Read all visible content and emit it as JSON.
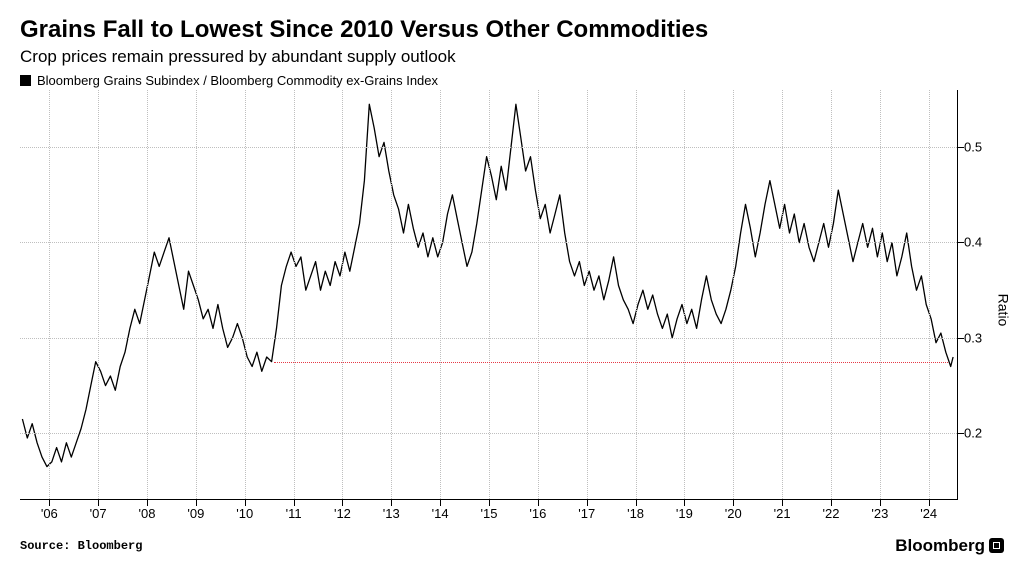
{
  "title": "Grains Fall to Lowest Since 2010 Versus Other Commodities",
  "subtitle": "Crop prices remain pressured by abundant supply outlook",
  "legend_label": "Bloomberg Grains Subindex / Bloomberg Commodity ex-Grains Index",
  "source": "Source: Bloomberg",
  "brand": "Bloomberg",
  "chart": {
    "type": "line",
    "yaxis_title": "Ratio",
    "ylim": [
      0.13,
      0.56
    ],
    "yticks": [
      0.2,
      0.3,
      0.4,
      0.5
    ],
    "xlim": [
      2005.4,
      2024.6
    ],
    "xticks": [
      2006,
      2007,
      2008,
      2009,
      2010,
      2011,
      2012,
      2013,
      2014,
      2015,
      2016,
      2017,
      2018,
      2019,
      2020,
      2021,
      2022,
      2023,
      2024
    ],
    "xtick_labels": [
      "'06",
      "'07",
      "'08",
      "'09",
      "'10",
      "'11",
      "'12",
      "'13",
      "'14",
      "'15",
      "'16",
      "'17",
      "'18",
      "'19",
      "'20",
      "'21",
      "'22",
      "'23",
      "'24"
    ],
    "line_color": "#000000",
    "line_width": 1.3,
    "grid_color": "#bfbfbf",
    "background_color": "#ffffff",
    "reference_line": {
      "y": 0.275,
      "x0": 2010.6,
      "x1": 2024.4,
      "color": "#e63946"
    },
    "series": [
      [
        2005.45,
        0.215
      ],
      [
        2005.55,
        0.195
      ],
      [
        2005.65,
        0.21
      ],
      [
        2005.75,
        0.19
      ],
      [
        2005.85,
        0.175
      ],
      [
        2005.95,
        0.165
      ],
      [
        2006.05,
        0.17
      ],
      [
        2006.15,
        0.185
      ],
      [
        2006.25,
        0.17
      ],
      [
        2006.35,
        0.19
      ],
      [
        2006.45,
        0.175
      ],
      [
        2006.55,
        0.19
      ],
      [
        2006.65,
        0.205
      ],
      [
        2006.75,
        0.225
      ],
      [
        2006.85,
        0.25
      ],
      [
        2006.95,
        0.275
      ],
      [
        2007.05,
        0.265
      ],
      [
        2007.15,
        0.25
      ],
      [
        2007.25,
        0.26
      ],
      [
        2007.35,
        0.245
      ],
      [
        2007.45,
        0.27
      ],
      [
        2007.55,
        0.285
      ],
      [
        2007.65,
        0.31
      ],
      [
        2007.75,
        0.33
      ],
      [
        2007.85,
        0.315
      ],
      [
        2007.95,
        0.34
      ],
      [
        2008.05,
        0.365
      ],
      [
        2008.15,
        0.39
      ],
      [
        2008.25,
        0.375
      ],
      [
        2008.35,
        0.39
      ],
      [
        2008.45,
        0.405
      ],
      [
        2008.55,
        0.38
      ],
      [
        2008.65,
        0.355
      ],
      [
        2008.75,
        0.33
      ],
      [
        2008.85,
        0.37
      ],
      [
        2008.95,
        0.355
      ],
      [
        2009.05,
        0.34
      ],
      [
        2009.15,
        0.32
      ],
      [
        2009.25,
        0.33
      ],
      [
        2009.35,
        0.31
      ],
      [
        2009.45,
        0.335
      ],
      [
        2009.55,
        0.31
      ],
      [
        2009.65,
        0.29
      ],
      [
        2009.75,
        0.3
      ],
      [
        2009.85,
        0.315
      ],
      [
        2009.95,
        0.3
      ],
      [
        2010.05,
        0.28
      ],
      [
        2010.15,
        0.27
      ],
      [
        2010.25,
        0.285
      ],
      [
        2010.35,
        0.265
      ],
      [
        2010.45,
        0.28
      ],
      [
        2010.55,
        0.275
      ],
      [
        2010.65,
        0.31
      ],
      [
        2010.75,
        0.355
      ],
      [
        2010.85,
        0.375
      ],
      [
        2010.95,
        0.39
      ],
      [
        2011.05,
        0.375
      ],
      [
        2011.15,
        0.385
      ],
      [
        2011.25,
        0.35
      ],
      [
        2011.35,
        0.365
      ],
      [
        2011.45,
        0.38
      ],
      [
        2011.55,
        0.35
      ],
      [
        2011.65,
        0.37
      ],
      [
        2011.75,
        0.355
      ],
      [
        2011.85,
        0.38
      ],
      [
        2011.95,
        0.365
      ],
      [
        2012.05,
        0.39
      ],
      [
        2012.15,
        0.37
      ],
      [
        2012.25,
        0.395
      ],
      [
        2012.35,
        0.42
      ],
      [
        2012.45,
        0.465
      ],
      [
        2012.55,
        0.545
      ],
      [
        2012.65,
        0.52
      ],
      [
        2012.75,
        0.49
      ],
      [
        2012.85,
        0.505
      ],
      [
        2012.95,
        0.475
      ],
      [
        2013.05,
        0.45
      ],
      [
        2013.15,
        0.435
      ],
      [
        2013.25,
        0.41
      ],
      [
        2013.35,
        0.44
      ],
      [
        2013.45,
        0.415
      ],
      [
        2013.55,
        0.395
      ],
      [
        2013.65,
        0.41
      ],
      [
        2013.75,
        0.385
      ],
      [
        2013.85,
        0.405
      ],
      [
        2013.95,
        0.385
      ],
      [
        2014.05,
        0.4
      ],
      [
        2014.15,
        0.43
      ],
      [
        2014.25,
        0.45
      ],
      [
        2014.35,
        0.425
      ],
      [
        2014.45,
        0.4
      ],
      [
        2014.55,
        0.375
      ],
      [
        2014.65,
        0.39
      ],
      [
        2014.75,
        0.42
      ],
      [
        2014.85,
        0.455
      ],
      [
        2014.95,
        0.49
      ],
      [
        2015.05,
        0.47
      ],
      [
        2015.15,
        0.445
      ],
      [
        2015.25,
        0.48
      ],
      [
        2015.35,
        0.455
      ],
      [
        2015.45,
        0.5
      ],
      [
        2015.55,
        0.545
      ],
      [
        2015.65,
        0.51
      ],
      [
        2015.75,
        0.475
      ],
      [
        2015.85,
        0.49
      ],
      [
        2015.95,
        0.455
      ],
      [
        2016.05,
        0.425
      ],
      [
        2016.15,
        0.44
      ],
      [
        2016.25,
        0.41
      ],
      [
        2016.35,
        0.43
      ],
      [
        2016.45,
        0.45
      ],
      [
        2016.55,
        0.41
      ],
      [
        2016.65,
        0.38
      ],
      [
        2016.75,
        0.365
      ],
      [
        2016.85,
        0.38
      ],
      [
        2016.95,
        0.355
      ],
      [
        2017.05,
        0.37
      ],
      [
        2017.15,
        0.35
      ],
      [
        2017.25,
        0.365
      ],
      [
        2017.35,
        0.34
      ],
      [
        2017.45,
        0.36
      ],
      [
        2017.55,
        0.385
      ],
      [
        2017.65,
        0.355
      ],
      [
        2017.75,
        0.34
      ],
      [
        2017.85,
        0.33
      ],
      [
        2017.95,
        0.315
      ],
      [
        2018.05,
        0.335
      ],
      [
        2018.15,
        0.35
      ],
      [
        2018.25,
        0.33
      ],
      [
        2018.35,
        0.345
      ],
      [
        2018.45,
        0.325
      ],
      [
        2018.55,
        0.31
      ],
      [
        2018.65,
        0.325
      ],
      [
        2018.75,
        0.3
      ],
      [
        2018.85,
        0.32
      ],
      [
        2018.95,
        0.335
      ],
      [
        2019.05,
        0.315
      ],
      [
        2019.15,
        0.33
      ],
      [
        2019.25,
        0.31
      ],
      [
        2019.35,
        0.34
      ],
      [
        2019.45,
        0.365
      ],
      [
        2019.55,
        0.34
      ],
      [
        2019.65,
        0.325
      ],
      [
        2019.75,
        0.315
      ],
      [
        2019.85,
        0.33
      ],
      [
        2019.95,
        0.35
      ],
      [
        2020.05,
        0.375
      ],
      [
        2020.15,
        0.41
      ],
      [
        2020.25,
        0.44
      ],
      [
        2020.35,
        0.415
      ],
      [
        2020.45,
        0.385
      ],
      [
        2020.55,
        0.41
      ],
      [
        2020.65,
        0.44
      ],
      [
        2020.75,
        0.465
      ],
      [
        2020.85,
        0.44
      ],
      [
        2020.95,
        0.415
      ],
      [
        2021.05,
        0.44
      ],
      [
        2021.15,
        0.41
      ],
      [
        2021.25,
        0.43
      ],
      [
        2021.35,
        0.4
      ],
      [
        2021.45,
        0.42
      ],
      [
        2021.55,
        0.395
      ],
      [
        2021.65,
        0.38
      ],
      [
        2021.75,
        0.4
      ],
      [
        2021.85,
        0.42
      ],
      [
        2021.95,
        0.395
      ],
      [
        2022.05,
        0.42
      ],
      [
        2022.15,
        0.455
      ],
      [
        2022.25,
        0.43
      ],
      [
        2022.35,
        0.405
      ],
      [
        2022.45,
        0.38
      ],
      [
        2022.55,
        0.4
      ],
      [
        2022.65,
        0.42
      ],
      [
        2022.75,
        0.395
      ],
      [
        2022.85,
        0.415
      ],
      [
        2022.95,
        0.385
      ],
      [
        2023.05,
        0.41
      ],
      [
        2023.15,
        0.38
      ],
      [
        2023.25,
        0.4
      ],
      [
        2023.35,
        0.365
      ],
      [
        2023.45,
        0.385
      ],
      [
        2023.55,
        0.41
      ],
      [
        2023.65,
        0.375
      ],
      [
        2023.75,
        0.35
      ],
      [
        2023.85,
        0.365
      ],
      [
        2023.95,
        0.335
      ],
      [
        2024.05,
        0.32
      ],
      [
        2024.15,
        0.295
      ],
      [
        2024.25,
        0.305
      ],
      [
        2024.35,
        0.285
      ],
      [
        2024.45,
        0.27
      ],
      [
        2024.5,
        0.28
      ]
    ]
  }
}
